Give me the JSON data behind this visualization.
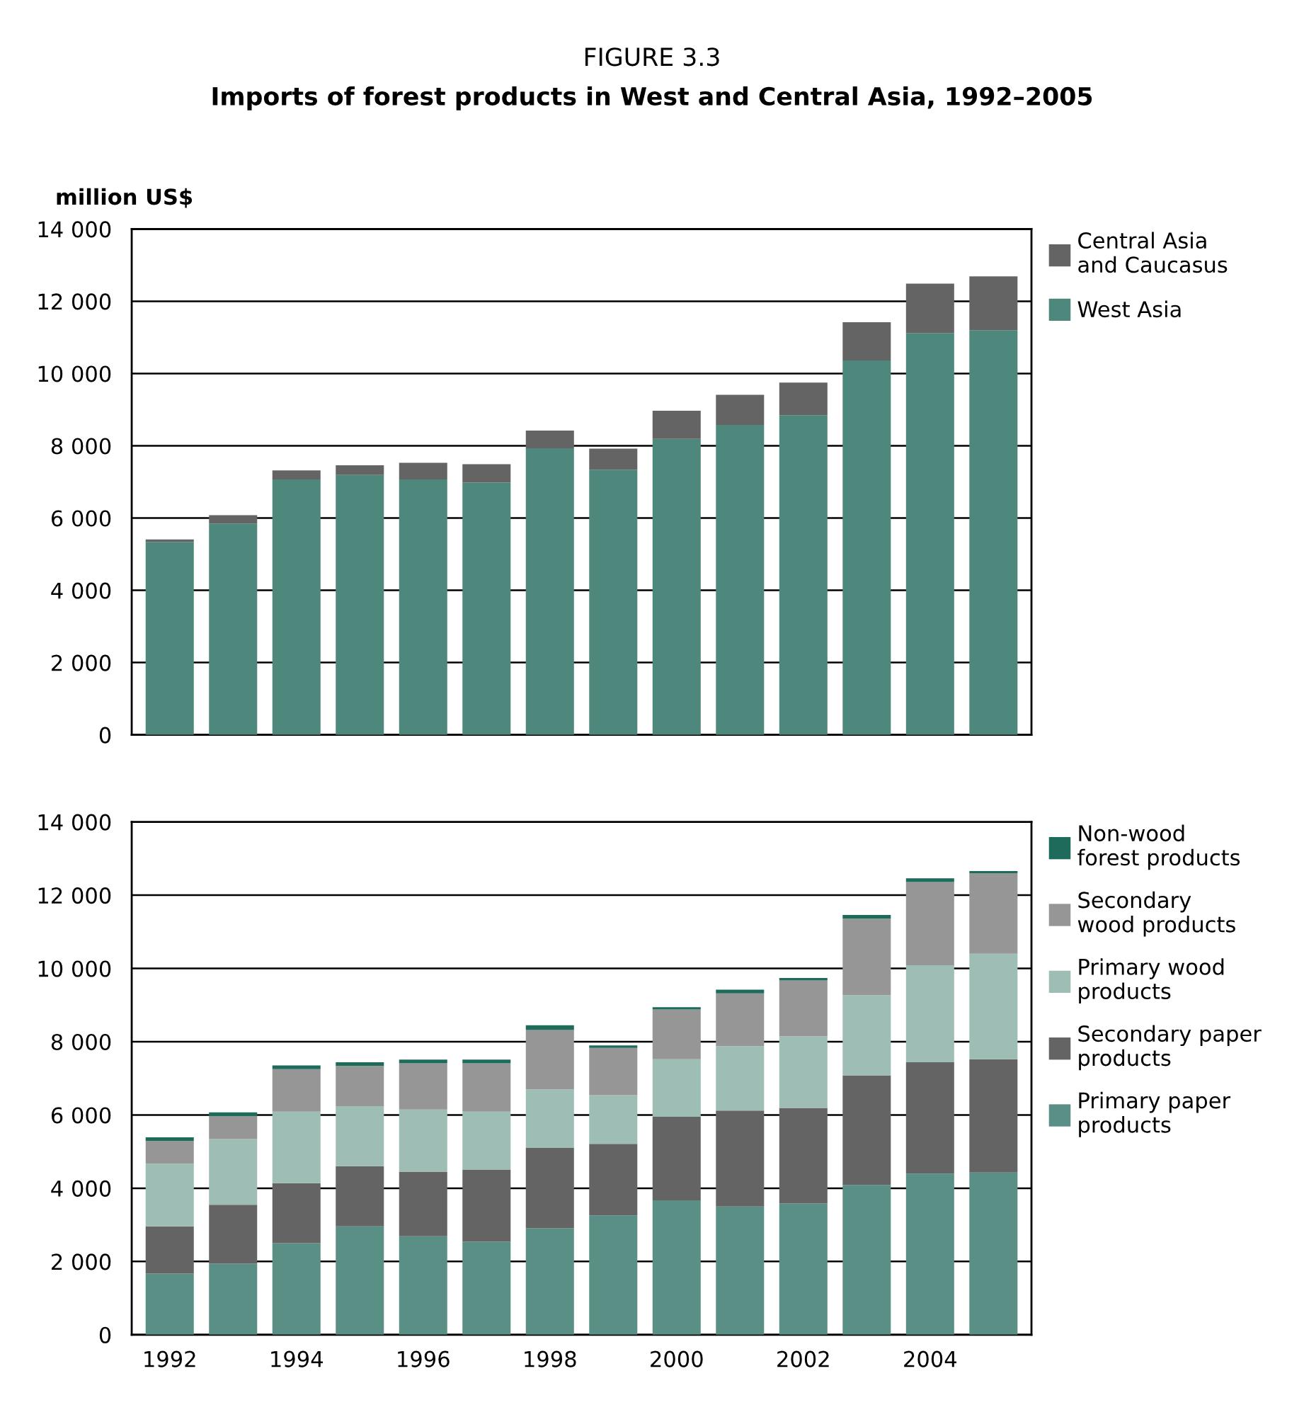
{
  "chart_data": [
    {
      "type": "bar",
      "title": "FIGURE 3.3",
      "subtitle": "Imports of forest products in West and Central Asia, 1992–2005",
      "ylabel": "million US$",
      "categories": [
        "1992",
        null,
        "1994",
        null,
        "1996",
        null,
        "1998",
        null,
        "2000",
        null,
        "2002",
        null,
        "2004",
        null
      ],
      "stacked": true,
      "tick_labels": "y",
      "grid": "y",
      "legend": "right",
      "ylim": [
        0,
        14000
      ],
      "yticks": [
        0,
        {
          "value": 2000,
          "label": "2 000"
        },
        {
          "value": 4000,
          "label": "4 000"
        },
        {
          "value": 6000,
          "label": "6 000"
        },
        {
          "value": 8000,
          "label": "8 000"
        },
        {
          "value": 10000,
          "label": "10 000"
        },
        {
          "value": 12000,
          "label": "12 000"
        },
        {
          "value": 14000,
          "label": "14 000"
        }
      ],
      "series": [
        {
          "name": "West Asia",
          "color": "#4e877c",
          "values": [
            5340,
            5850,
            7070,
            7190,
            7070,
            6980,
            7930,
            7340,
            8190,
            8580,
            8850,
            10360,
            11120,
            11200
          ]
        },
        {
          "name": "Central Asia\nand Caucasus",
          "color": "#646464",
          "values": [
            70,
            230,
            250,
            270,
            460,
            510,
            490,
            580,
            780,
            830,
            900,
            1060,
            1370,
            1490
          ]
        }
      ]
    },
    {
      "type": "bar",
      "categories": [
        "1992",
        null,
        "1994",
        null,
        "1996",
        null,
        "1998",
        null,
        "2000",
        null,
        "2002",
        null,
        "2004",
        null
      ],
      "stacked": true,
      "grid": "y",
      "legend": "right",
      "ylim": [
        0,
        14000
      ],
      "yticks": [
        0,
        {
          "value": 2000,
          "label": "2 000"
        },
        {
          "value": 4000,
          "label": "4 000"
        },
        {
          "value": 6000,
          "label": "6 000"
        },
        {
          "value": 8000,
          "label": "8 000"
        },
        {
          "value": 10000,
          "label": "10 000"
        },
        {
          "value": 12000,
          "label": "12 000"
        },
        {
          "value": 14000,
          "label": "14 000"
        }
      ],
      "series": [
        {
          "name": "Primary paper\nproducts",
          "color": "#5a8f86",
          "values": [
            1670,
            1940,
            2500,
            2960,
            2690,
            2540,
            2910,
            3260,
            3670,
            3500,
            3580,
            4090,
            4400,
            4430
          ]
        },
        {
          "name": "Secondary paper\nproducts",
          "color": "#646464",
          "values": [
            1290,
            1610,
            1640,
            1640,
            1760,
            1970,
            2200,
            1950,
            2280,
            2620,
            2610,
            2990,
            3040,
            3090
          ]
        },
        {
          "name": "Primary wood\nproducts",
          "color": "#9dbdb5",
          "values": [
            1710,
            1790,
            1950,
            1640,
            1700,
            1580,
            1590,
            1330,
            1570,
            1760,
            1960,
            2190,
            2650,
            2880
          ]
        },
        {
          "name": "Secondary\nwood products",
          "color": "#969696",
          "values": [
            620,
            630,
            1160,
            1100,
            1260,
            1320,
            1620,
            1290,
            1360,
            1440,
            1520,
            2090,
            2270,
            2200
          ]
        },
        {
          "name": "Non-wood\nforest products",
          "color": "#1e6b5c",
          "values": [
            100,
            100,
            100,
            100,
            100,
            100,
            130,
            70,
            60,
            100,
            70,
            100,
            100,
            60
          ]
        }
      ]
    }
  ]
}
